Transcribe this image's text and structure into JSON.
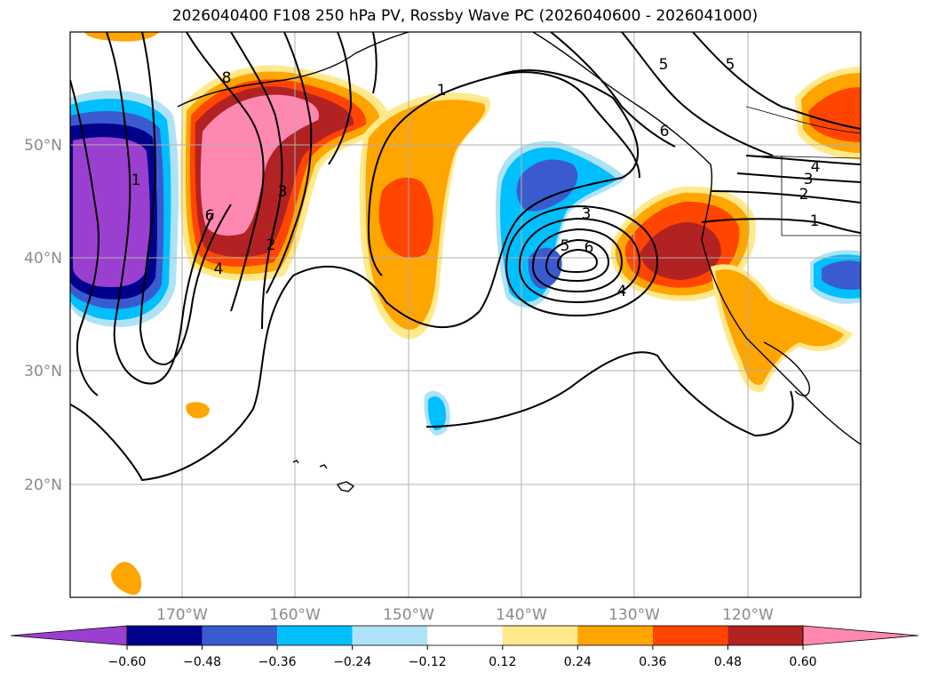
{
  "chart_data": {
    "type": "contour-map",
    "title": "2026040400 F108 250 hPa PV, Rossby Wave PC (2026040600 - 2026041000)",
    "x_ticks": [
      "170°W",
      "160°W",
      "150°W",
      "140°W",
      "130°W",
      "120°W"
    ],
    "y_ticks": [
      "50°N",
      "40°N",
      "30°N",
      "20°N"
    ],
    "lon_range": [
      -180,
      -110
    ],
    "lat_range": [
      10,
      60
    ],
    "grid": true,
    "colorbar": {
      "levels": [
        "−0.60",
        "−0.48",
        "−0.36",
        "−0.24",
        "−0.12",
        "0.12",
        "0.24",
        "0.36",
        "0.48",
        "0.60"
      ],
      "colors": [
        "#9b3fd1",
        "#00008b",
        "#3a5bd0",
        "#00bfff",
        "#aee3f7",
        "#ffffff",
        "#ffe98a",
        "#ffa500",
        "#ff4500",
        "#b22222",
        "#ff88b0"
      ],
      "extend": "both"
    },
    "contour_labels": [
      "8",
      "6",
      "4",
      "3",
      "2",
      "1",
      "1",
      "5",
      "5",
      "3",
      "5",
      "6",
      "4",
      "4",
      "3",
      "2",
      "1",
      "6"
    ],
    "contour_label_colors": {
      "line": "#000000"
    }
  }
}
